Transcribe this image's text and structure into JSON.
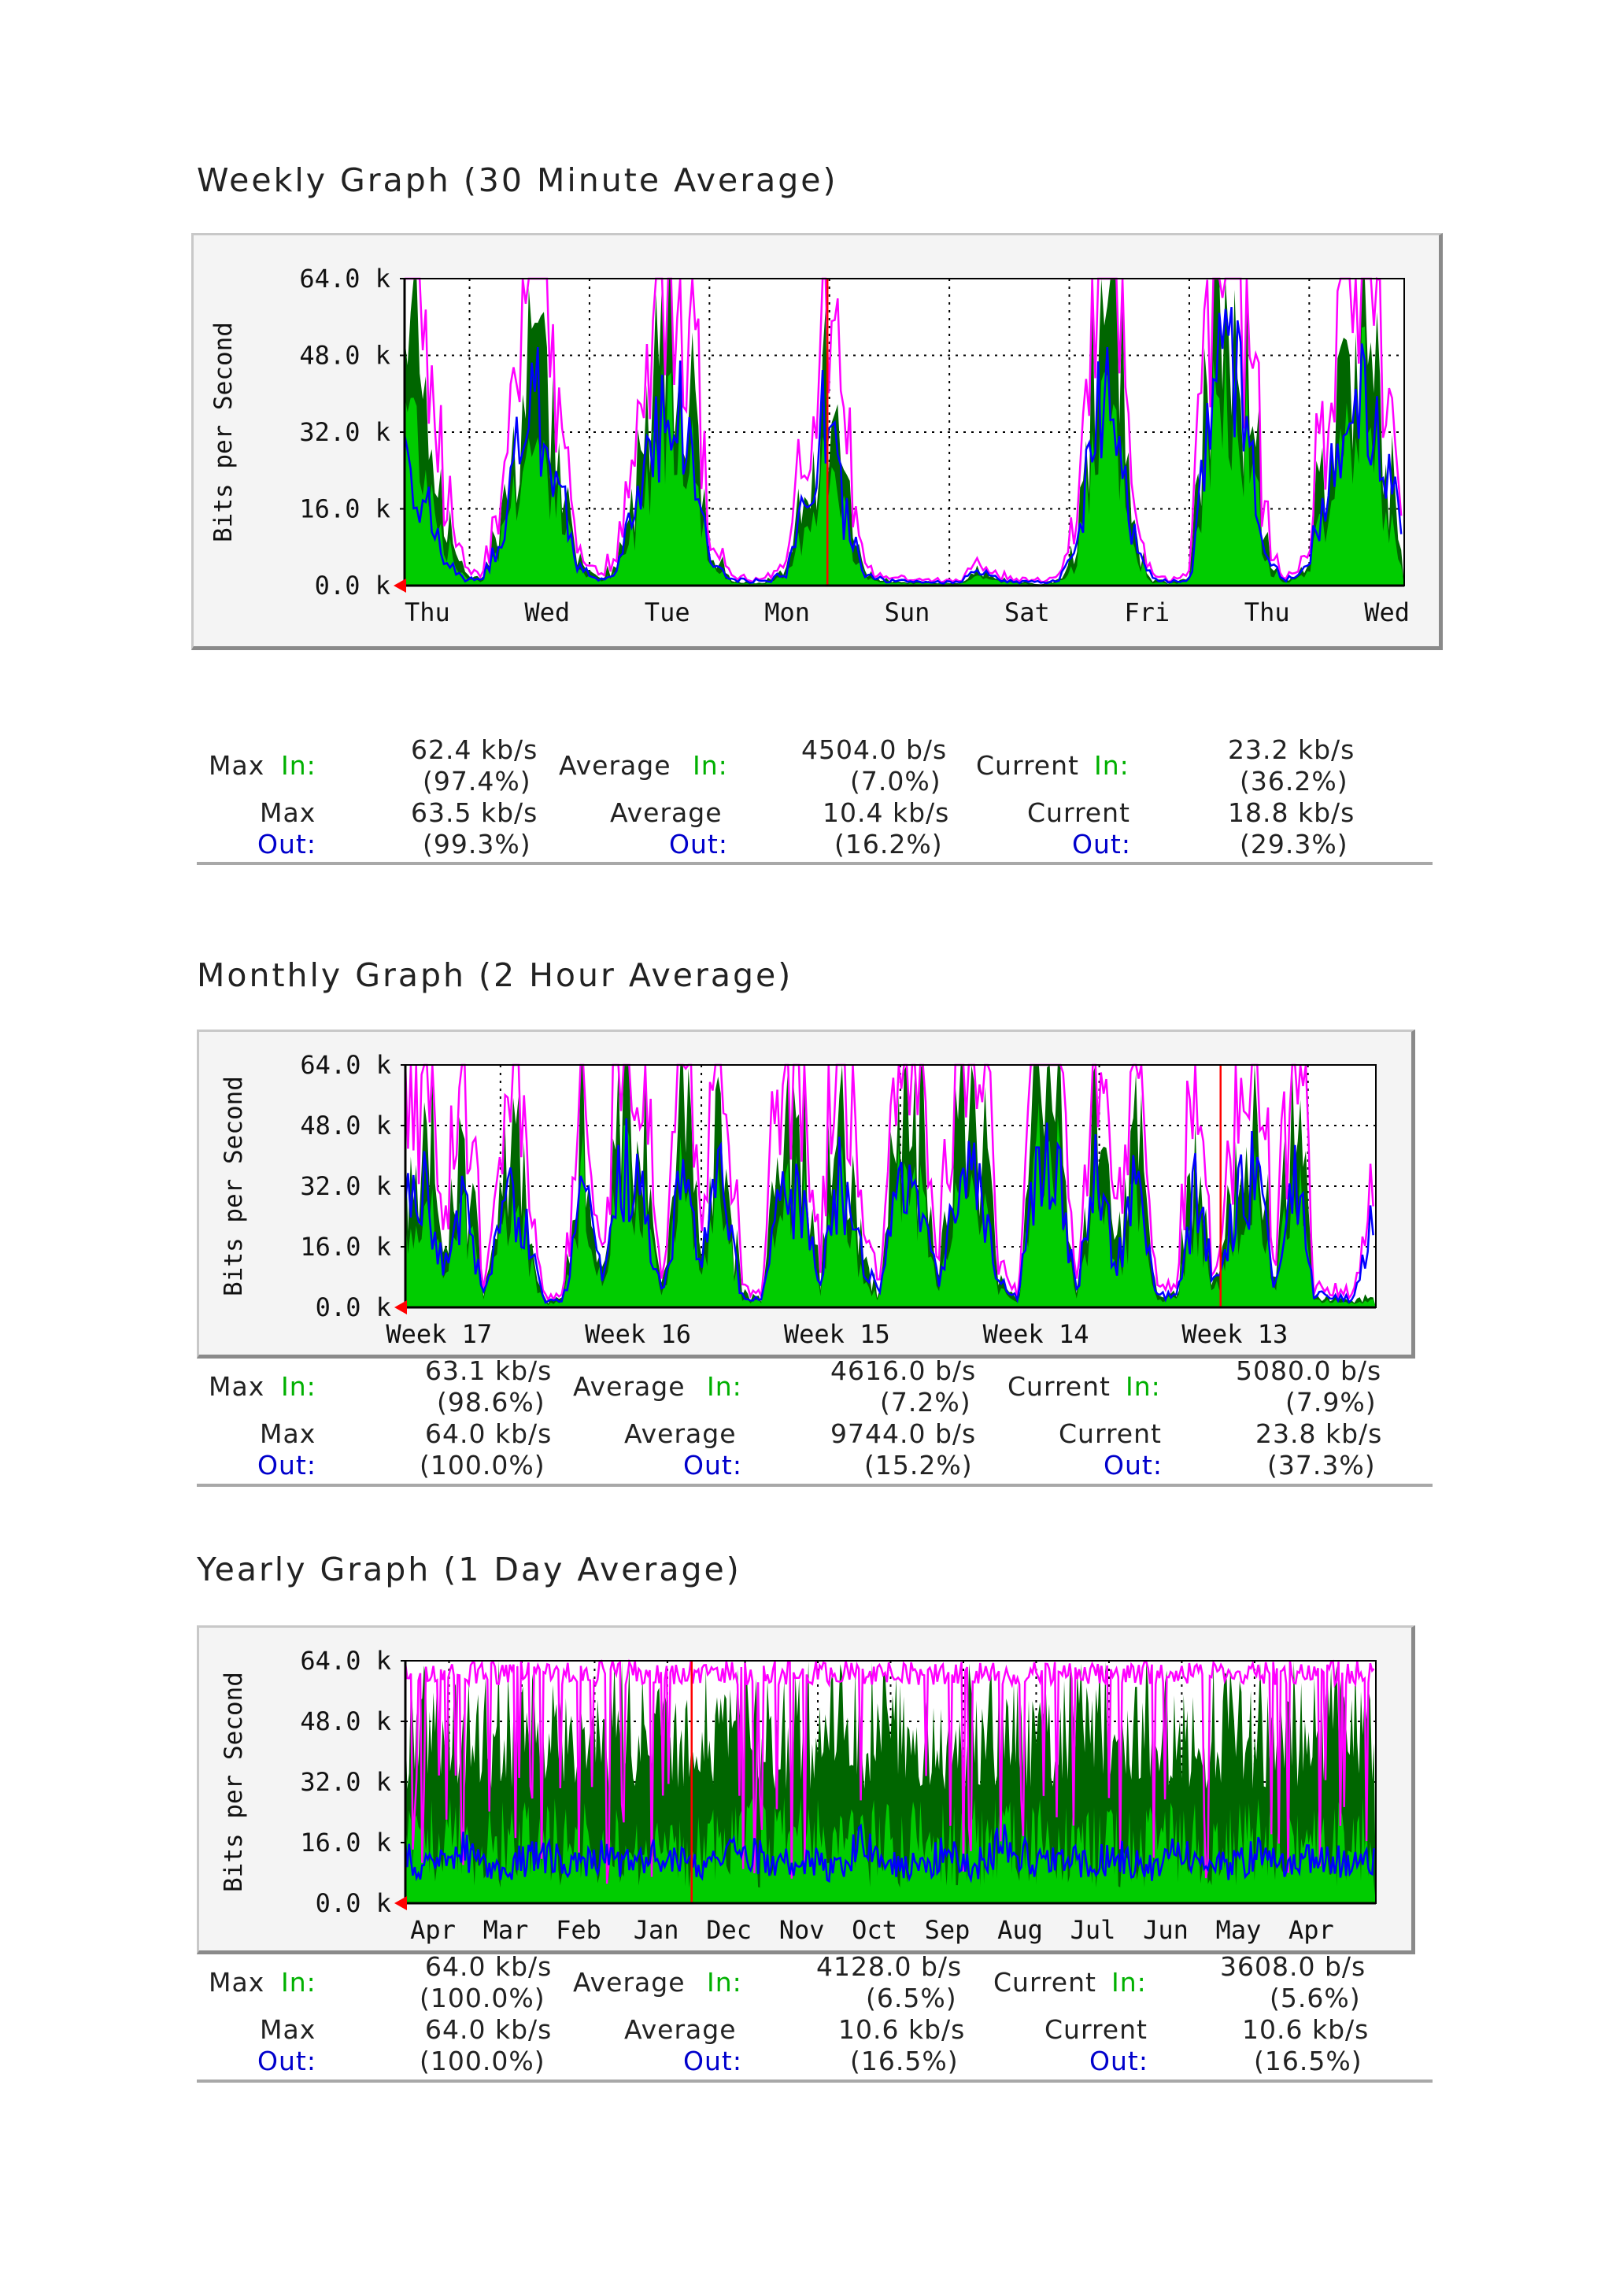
{
  "sections": [
    {
      "title": "Weekly Graph (30 Minute Average)",
      "stats": {
        "max_label": "Max",
        "average_label": "Average",
        "current_label": "Current",
        "in_label": "In:",
        "out_label": "Out:",
        "max_in": "62.4 kb/s",
        "max_in_pct": "(97.4%)",
        "avg_in": "4504.0 b/s",
        "avg_in_pct": "(7.0%)",
        "cur_in": "23.2 kb/s",
        "cur_in_pct": "(36.2%)",
        "max_out": "63.5 kb/s",
        "max_out_pct": "(99.3%)",
        "avg_out": "10.4 kb/s",
        "avg_out_pct": "(16.2%)",
        "cur_out": "18.8 kb/s",
        "cur_out_pct": "(29.3%)"
      }
    },
    {
      "title": "Monthly Graph (2 Hour Average)",
      "stats": {
        "max_label": "Max",
        "average_label": "Average",
        "current_label": "Current",
        "in_label": "In:",
        "out_label": "Out:",
        "max_in": "63.1 kb/s",
        "max_in_pct": "(98.6%)",
        "avg_in": "4616.0 b/s",
        "avg_in_pct": "(7.2%)",
        "cur_in": "5080.0 b/s",
        "cur_in_pct": "(7.9%)",
        "max_out": "64.0 kb/s",
        "max_out_pct": "(100.0%)",
        "avg_out": "9744.0 b/s",
        "avg_out_pct": "(15.2%)",
        "cur_out": "23.8 kb/s",
        "cur_out_pct": "(37.3%)"
      }
    },
    {
      "title": "Yearly Graph (1 Day Average)",
      "stats": {
        "max_label": "Max",
        "average_label": "Average",
        "current_label": "Current",
        "in_label": "In:",
        "out_label": "Out:",
        "max_in": "64.0 kb/s",
        "max_in_pct": "(100.0%)",
        "avg_in": "4128.0 b/s",
        "avg_in_pct": "(6.5%)",
        "cur_in": "3608.0 b/s",
        "cur_in_pct": "(5.6%)",
        "max_out": "64.0 kb/s",
        "max_out_pct": "(100.0%)",
        "avg_out": "10.6 kb/s",
        "avg_out_pct": "(16.5%)",
        "cur_out": "10.6 kb/s",
        "cur_out_pct": "(16.5%)"
      }
    }
  ],
  "chart_data": [
    {
      "type": "area",
      "ylabel": "Bits per Second",
      "ylim": [
        0,
        64000
      ],
      "y_ticks": [
        "0.0 k",
        "16.0 k",
        "32.0 k",
        "48.0 k",
        "64.0 k"
      ],
      "x_ticks": [
        "Thu",
        "Wed",
        "Tue",
        "Mon",
        "Sun",
        "Sat",
        "Fri",
        "Thu",
        "Wed"
      ],
      "grid": true,
      "colors": {
        "in": "#00cc00",
        "in_max": "#006600",
        "out": "#0000ff",
        "out_max": "#ff00ff",
        "marker": "#ff0000"
      },
      "series": [
        {
          "name": "In",
          "values": [
            40000,
            28000,
            10000,
            2000,
            1000,
            9000,
            24000,
            30000,
            18000,
            4000,
            1000,
            2000,
            12000,
            30000,
            42000,
            26000,
            4000,
            800,
            400,
            600,
            2000,
            14000,
            26000,
            12000,
            2000,
            600,
            500,
            400,
            300,
            400,
            2000,
            800,
            400,
            300,
            400,
            4000,
            28000,
            34000,
            8000,
            600,
            400,
            900,
            30000,
            44000,
            30000,
            4000,
            600,
            2000,
            14000,
            28000,
            40000,
            18000,
            4000
          ]
        },
        {
          "name": "Out",
          "values": [
            30000,
            18000,
            6000,
            1500,
            1000,
            10000,
            30000,
            36000,
            22000,
            5000,
            1000,
            2000,
            16000,
            34000,
            40000,
            26000,
            5000,
            1200,
            1000,
            1000,
            3000,
            20000,
            36000,
            14000,
            3000,
            1000,
            900,
            800,
            700,
            900,
            3000,
            1200,
            800,
            700,
            900,
            6000,
            36000,
            44000,
            12000,
            1200,
            1000,
            1500,
            36000,
            48000,
            34000,
            5000,
            1200,
            3000,
            20000,
            34000,
            44000,
            24000,
            16000
          ]
        }
      ]
    },
    {
      "type": "area",
      "ylabel": "Bits per Second",
      "ylim": [
        0,
        64000
      ],
      "y_ticks": [
        "0.0 k",
        "16.0 k",
        "32.0 k",
        "48.0 k",
        "64.0 k"
      ],
      "x_ticks": [
        "Week 17",
        "Week 16",
        "Week 15",
        "Week 14",
        "Week 13"
      ],
      "grid": true,
      "colors": {
        "in": "#00cc00",
        "in_max": "#006600",
        "out": "#0000ff",
        "out_max": "#ff00ff",
        "marker": "#ff0000"
      },
      "series": [
        {
          "name": "In",
          "values": [
            20000,
            30000,
            8000,
            24000,
            2000,
            26000,
            18000,
            1000,
            1200,
            32000,
            4000,
            40000,
            30000,
            2000,
            36000,
            8000,
            30000,
            2000,
            1500,
            26000,
            34000,
            3000,
            38000,
            10000,
            2000,
            32000,
            30000,
            4000,
            28000,
            36000,
            5000,
            1200,
            38000,
            40000,
            3000,
            34000,
            6000,
            30000,
            2000,
            2000,
            26000,
            4000,
            22000,
            34000,
            3000,
            40000,
            2000,
            1500,
            1000,
            1500
          ]
        },
        {
          "name": "Out",
          "values": [
            26000,
            34000,
            10000,
            28000,
            3000,
            32000,
            24000,
            1500,
            1800,
            30000,
            6000,
            38000,
            28000,
            3000,
            34000,
            12000,
            34000,
            3000,
            2000,
            30000,
            30000,
            5000,
            34000,
            14000,
            3000,
            30000,
            32000,
            6000,
            32000,
            34000,
            7000,
            2000,
            36000,
            38000,
            5000,
            36000,
            10000,
            32000,
            3000,
            3000,
            30000,
            6000,
            26000,
            36000,
            5000,
            36000,
            4000,
            3000,
            2000,
            24000
          ]
        }
      ]
    },
    {
      "type": "area",
      "ylabel": "Bits per Second",
      "ylim": [
        0,
        64000
      ],
      "y_ticks": [
        "0.0 k",
        "16.0 k",
        "32.0 k",
        "48.0 k",
        "64.0 k"
      ],
      "x_ticks": [
        "Apr",
        "Mar",
        "Feb",
        "Jan",
        "Dec",
        "Nov",
        "Oct",
        "Sep",
        "Aug",
        "Jul",
        "Jun",
        "May",
        "Apr"
      ],
      "grid": true,
      "colors": {
        "in": "#00cc00",
        "in_max": "#006600",
        "out": "#0000ff",
        "out_max": "#ff00ff",
        "marker": "#ff0000"
      },
      "series": [
        {
          "name": "In",
          "values": [
            3000,
            5000,
            2500,
            4500,
            3500,
            2000,
            4000,
            5500,
            3000,
            3800,
            4200,
            2600,
            5000,
            3600,
            4400,
            3000,
            4800,
            3200,
            2800,
            4600,
            3400,
            5200,
            3800,
            4000,
            3000,
            4500,
            3700,
            4300,
            2900,
            4100,
            3600,
            3900,
            4700,
            3300,
            3600
          ]
        },
        {
          "name": "Out",
          "values": [
            12000,
            9000,
            14000,
            8000,
            11000,
            13000,
            9500,
            12500,
            10000,
            14000,
            9000,
            11500,
            13500,
            10500,
            12000,
            9000,
            15000,
            11000,
            10000,
            13000,
            9500,
            16000,
            11000,
            12000,
            10500,
            13000,
            9000,
            12500,
            11000,
            10000,
            13000,
            9500,
            12000,
            11000,
            10600
          ]
        }
      ]
    }
  ]
}
